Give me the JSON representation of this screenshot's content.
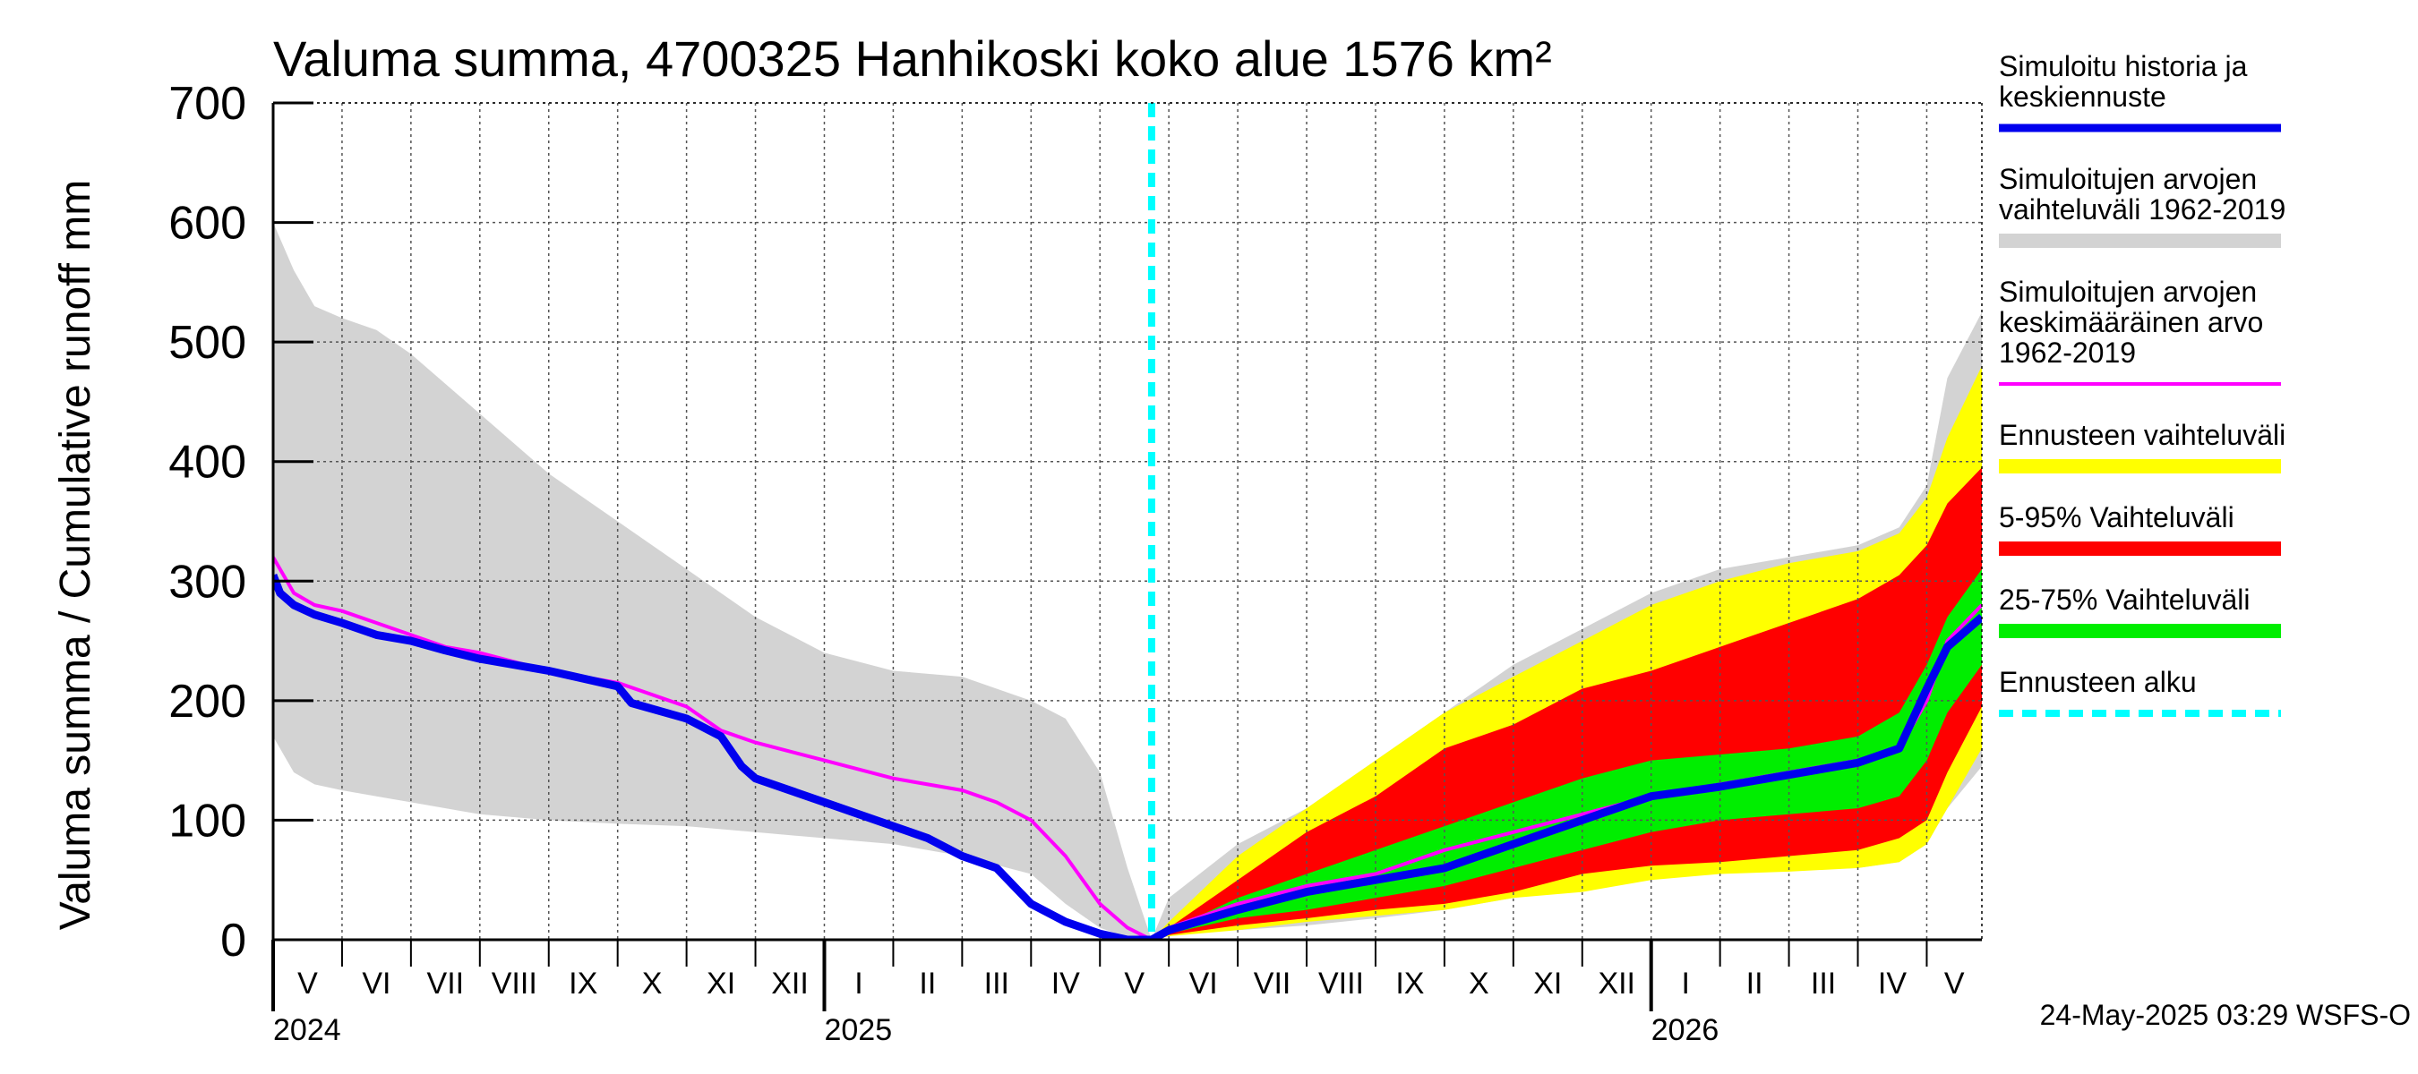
{
  "chart_data": {
    "type": "area",
    "title": "Valuma summa, 4700325 Hanhikoski koko alue 1576 km²",
    "ylabel": "Valuma summa / Cumulative runoff    mm",
    "xlabel": "",
    "ylim": [
      0,
      700
    ],
    "yticks": [
      "0",
      "100",
      "200",
      "300",
      "400",
      "500",
      "600",
      "700"
    ],
    "grid": true,
    "x_start_month_index": 0,
    "x_end_month_index": 24.8,
    "forecast_start_month_index": 12.75,
    "month_labels": [
      "V",
      "VI",
      "VII",
      "VIII",
      "IX",
      "X",
      "XI",
      "XII",
      "I",
      "II",
      "III",
      "IV",
      "V",
      "VI",
      "VII",
      "VIII",
      "IX",
      "X",
      "XI",
      "XII",
      "I",
      "II",
      "III",
      "IV",
      "V"
    ],
    "year_labels": [
      {
        "label": "2024",
        "month_index": 0
      },
      {
        "label": "2025",
        "month_index": 8
      },
      {
        "label": "2026",
        "month_index": 20
      }
    ],
    "series": [
      {
        "name": "Simuloitujen arvojen vaihteluväli 1962-2019",
        "kind": "band",
        "color": "#d3d3d3",
        "x": [
          0,
          0.3,
          0.6,
          1,
          1.5,
          2,
          3,
          4,
          5,
          6,
          7,
          8,
          9,
          10,
          11,
          11.5,
          12,
          12.4,
          12.75,
          13,
          14,
          15,
          16,
          17,
          18,
          19,
          20,
          21,
          22,
          23,
          23.6,
          24,
          24.3,
          24.8
        ],
        "upper": [
          600,
          560,
          530,
          520,
          510,
          490,
          440,
          390,
          350,
          310,
          270,
          240,
          225,
          220,
          200,
          185,
          140,
          60,
          0,
          35,
          80,
          110,
          150,
          190,
          230,
          260,
          290,
          310,
          320,
          330,
          345,
          380,
          470,
          525
        ],
        "lower": [
          170,
          140,
          130,
          125,
          120,
          115,
          105,
          100,
          97,
          95,
          90,
          85,
          80,
          70,
          55,
          30,
          10,
          2,
          0,
          5,
          8,
          12,
          18,
          25,
          35,
          45,
          55,
          57,
          58,
          60,
          65,
          80,
          110,
          145
        ]
      },
      {
        "name": "Ennusteen vaihteluväli",
        "kind": "band",
        "color": "#ffff00",
        "x": [
          12.75,
          13,
          14,
          15,
          16,
          17,
          18,
          19,
          20,
          21,
          22,
          23,
          23.6,
          24,
          24.3,
          24.8
        ],
        "upper": [
          0,
          15,
          70,
          110,
          150,
          190,
          220,
          250,
          280,
          300,
          315,
          325,
          340,
          370,
          420,
          480
        ],
        "lower": [
          0,
          3,
          8,
          15,
          20,
          25,
          35,
          40,
          50,
          55,
          57,
          60,
          65,
          80,
          110,
          160
        ]
      },
      {
        "name": "5-95% Vaihteluväli",
        "kind": "band",
        "color": "#ff0000",
        "x": [
          12.75,
          13,
          14,
          15,
          16,
          17,
          18,
          19,
          20,
          21,
          22,
          23,
          23.6,
          24,
          24.3,
          24.8
        ],
        "upper": [
          0,
          10,
          50,
          90,
          120,
          160,
          180,
          210,
          225,
          245,
          265,
          285,
          305,
          330,
          365,
          395
        ],
        "lower": [
          0,
          4,
          12,
          18,
          25,
          30,
          40,
          55,
          62,
          65,
          70,
          75,
          85,
          100,
          140,
          195
        ]
      },
      {
        "name": "25-75% Vaihteluväli",
        "kind": "band",
        "color": "#00ee00",
        "x": [
          12.75,
          13,
          14,
          15,
          16,
          17,
          18,
          19,
          20,
          21,
          22,
          23,
          23.6,
          24,
          24.3,
          24.8
        ],
        "upper": [
          0,
          8,
          35,
          55,
          75,
          95,
          115,
          135,
          150,
          155,
          160,
          170,
          190,
          230,
          270,
          310
        ],
        "lower": [
          0,
          5,
          18,
          25,
          35,
          45,
          60,
          75,
          90,
          100,
          105,
          110,
          120,
          150,
          190,
          230
        ]
      },
      {
        "name": "Simuloitujen arvojen keskimääräinen arvo 1962-2019",
        "kind": "line",
        "color": "#ff00ff",
        "x": [
          0,
          0.1,
          0.3,
          0.6,
          1,
          1.5,
          2,
          2.5,
          3,
          4,
          5,
          6,
          6.5,
          7,
          8,
          9,
          10,
          10.5,
          11,
          11.5,
          12,
          12.4,
          12.75,
          13,
          14,
          15,
          16,
          17,
          18,
          19,
          20,
          21,
          22,
          23,
          23.6,
          24,
          24.3,
          24.8
        ],
        "values": [
          320,
          310,
          290,
          280,
          275,
          265,
          255,
          245,
          240,
          225,
          215,
          195,
          175,
          165,
          150,
          135,
          125,
          115,
          100,
          70,
          30,
          10,
          0,
          10,
          30,
          45,
          55,
          75,
          90,
          105,
          120,
          130,
          140,
          150,
          160,
          200,
          250,
          280
        ]
      },
      {
        "name": "Simuloitu historia ja keskiennuste",
        "kind": "line",
        "color": "#0000ee",
        "x": [
          0,
          0.1,
          0.3,
          0.6,
          1,
          1.5,
          2,
          2.5,
          3,
          4,
          5,
          5.2,
          6,
          6.5,
          6.8,
          7,
          8,
          9,
          9.5,
          10,
          10.5,
          11,
          11.5,
          12,
          12.4,
          12.75,
          13,
          14,
          15,
          16,
          17,
          18,
          19,
          20,
          21,
          22,
          23,
          23.6,
          24,
          24.3,
          24.8
        ],
        "values": [
          305,
          290,
          280,
          272,
          265,
          255,
          250,
          242,
          235,
          225,
          212,
          198,
          185,
          170,
          145,
          135,
          115,
          95,
          85,
          70,
          60,
          30,
          15,
          5,
          0,
          0,
          8,
          25,
          40,
          50,
          60,
          80,
          100,
          120,
          128,
          138,
          148,
          160,
          210,
          245,
          270
        ]
      },
      {
        "name": "Ennusteen alku",
        "kind": "vline",
        "color": "#00ffff",
        "month_index": 12.75
      }
    ],
    "legend": {
      "placement": "right",
      "items": [
        {
          "label": "Simuloitu historia ja keskiennuste",
          "lines": [
            "Simuloitu historia ja",
            "keskiennuste"
          ],
          "color": "#0000ee",
          "style": "line"
        },
        {
          "label": "Simuloitujen arvojen vaihteluväli 1962-2019",
          "lines": [
            "Simuloitujen arvojen",
            "vaihteluväli 1962-2019"
          ],
          "color": "#d3d3d3",
          "style": "band"
        },
        {
          "label": "Simuloitujen arvojen keskimääräinen arvo 1962-2019",
          "lines": [
            "Simuloitujen arvojen",
            "keskimääräinen arvo",
            "   1962-2019"
          ],
          "color": "#ff00ff",
          "style": "thin"
        },
        {
          "label": "Ennusteen vaihteluväli",
          "lines": [
            "Ennusteen vaihteluväli"
          ],
          "color": "#ffff00",
          "style": "band"
        },
        {
          "label": "5-95% Vaihteluväli",
          "lines": [
            "5-95% Vaihteluväli"
          ],
          "color": "#ff0000",
          "style": "band"
        },
        {
          "label": "25-75% Vaihteluväli",
          "lines": [
            "25-75% Vaihteluväli"
          ],
          "color": "#00ee00",
          "style": "band"
        },
        {
          "label": "Ennusteen alku",
          "lines": [
            "Ennusteen alku"
          ],
          "color": "#00ffff",
          "style": "dashed"
        }
      ]
    },
    "footer": "24-May-2025 03:29 WSFS-O"
  }
}
